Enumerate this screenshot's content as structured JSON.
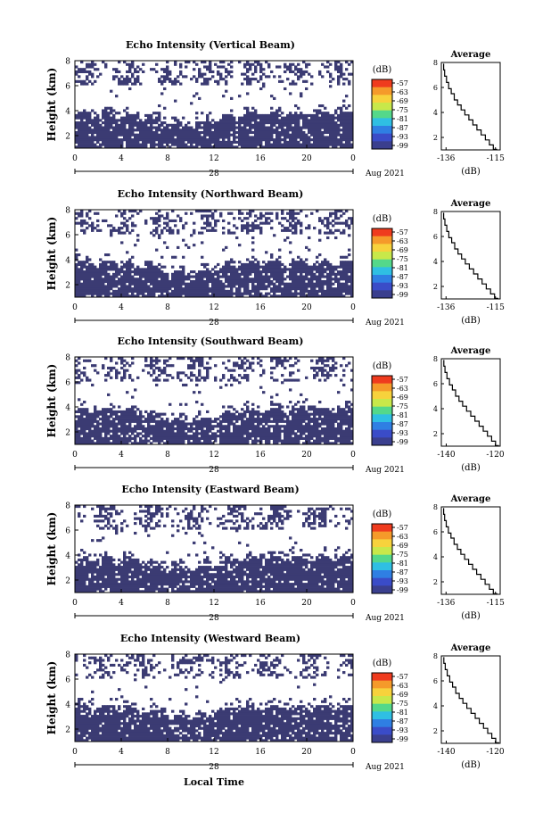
{
  "figure": {
    "xlabel": "Local Time",
    "date_label": "Aug 2021",
    "date_tick": "28",
    "colorbar_unit": "(dB)",
    "colorbar_ticks": [
      "-57",
      "-63",
      "-69",
      "-75",
      "-81",
      "-87",
      "-93",
      "-99"
    ],
    "colorbar_colors": [
      "#ef3b1e",
      "#f59a2a",
      "#f7d23c",
      "#c8e84a",
      "#54d88a",
      "#2fbfe3",
      "#2f7fe3",
      "#3a4cc8",
      "#3a3f8e"
    ],
    "panel_color": "#3b3b73",
    "panel_title": "Average",
    "avg_xlabel": "(dB)"
  },
  "chart_data": [
    {
      "type": "heatmap",
      "title": "Echo Intensity (Vertical Beam)",
      "ylabel": "Height (km)",
      "x_ticks": [
        "0",
        "4",
        "8",
        "12",
        "16",
        "20",
        "0"
      ],
      "xlim": [
        0,
        24
      ],
      "ylim": [
        1,
        8
      ],
      "y_ticks": [
        "8",
        "6",
        "4",
        "2"
      ],
      "avg_panel": {
        "type": "line",
        "title": "Average",
        "xlabel": "(dB)",
        "x_ticks": [
          "-136",
          "-115"
        ],
        "xlim": [
          -138,
          -113
        ],
        "y_ticks": [
          "8",
          "6",
          "4",
          "2"
        ],
        "ylim": [
          1,
          8
        ],
        "x": [
          -137,
          -136.6,
          -135.8,
          -134.9,
          -133.8,
          -132.5,
          -131.1,
          -129.6,
          -128.0,
          -126.3,
          -124.6,
          -122.9,
          -121.1,
          -119.3,
          -117.6,
          -115.9,
          -114.3
        ],
        "y": [
          7.9,
          7.4,
          6.9,
          6.4,
          5.9,
          5.5,
          5.0,
          4.6,
          4.2,
          3.8,
          3.4,
          3.0,
          2.6,
          2.2,
          1.8,
          1.4,
          1.05
        ]
      }
    },
    {
      "type": "heatmap",
      "title": "Echo Intensity (Northward Beam)",
      "ylabel": "Height (km)",
      "x_ticks": [
        "0",
        "4",
        "8",
        "12",
        "16",
        "20",
        "0"
      ],
      "xlim": [
        0,
        24
      ],
      "ylim": [
        1,
        8
      ],
      "y_ticks": [
        "8",
        "6",
        "4",
        "2"
      ],
      "avg_panel": {
        "type": "line",
        "title": "Average",
        "xlabel": "(dB)",
        "x_ticks": [
          "-136",
          "-115"
        ],
        "xlim": [
          -138,
          -113
        ],
        "y_ticks": [
          "8",
          "6",
          "4",
          "2"
        ],
        "ylim": [
          1,
          8
        ],
        "x": [
          -137,
          -136.5,
          -135.7,
          -134.8,
          -133.6,
          -132.3,
          -130.9,
          -129.4,
          -127.8,
          -126.1,
          -124.3,
          -122.5,
          -120.7,
          -118.9,
          -117.1,
          -115.4,
          -113.8
        ],
        "y": [
          7.9,
          7.4,
          6.9,
          6.4,
          5.9,
          5.5,
          5.0,
          4.6,
          4.2,
          3.8,
          3.4,
          3.0,
          2.6,
          2.2,
          1.8,
          1.4,
          1.05
        ]
      }
    },
    {
      "type": "heatmap",
      "title": "Echo Intensity (Southward Beam)",
      "ylabel": "Height (km)",
      "x_ticks": [
        "0",
        "4",
        "8",
        "12",
        "16",
        "20",
        "0"
      ],
      "xlim": [
        0,
        24
      ],
      "ylim": [
        1,
        8
      ],
      "y_ticks": [
        "8",
        "6",
        "4",
        "2"
      ],
      "avg_panel": {
        "type": "line",
        "title": "Average",
        "xlabel": "(dB)",
        "x_ticks": [
          "-140",
          "-120"
        ],
        "xlim": [
          -142,
          -118
        ],
        "y_ticks": [
          "8",
          "6",
          "4",
          "2"
        ],
        "ylim": [
          1,
          8
        ],
        "x": [
          -141,
          -140.5,
          -139.7,
          -138.7,
          -137.5,
          -136.2,
          -134.8,
          -133.3,
          -131.7,
          -130.0,
          -128.3,
          -126.6,
          -124.9,
          -123.2,
          -121.5,
          -119.9,
          -118.5
        ],
        "y": [
          7.9,
          7.4,
          6.9,
          6.4,
          5.9,
          5.5,
          5.0,
          4.6,
          4.2,
          3.8,
          3.4,
          3.0,
          2.6,
          2.2,
          1.8,
          1.4,
          1.05
        ]
      }
    },
    {
      "type": "heatmap",
      "title": "Echo Intensity (Eastward Beam)",
      "ylabel": "Height (km)",
      "x_ticks": [
        "0",
        "4",
        "8",
        "12",
        "16",
        "20",
        "0"
      ],
      "xlim": [
        0,
        24
      ],
      "ylim": [
        1,
        8
      ],
      "y_ticks": [
        "8",
        "6",
        "4",
        "2"
      ],
      "avg_panel": {
        "type": "line",
        "title": "Average",
        "xlabel": "(dB)",
        "x_ticks": [
          "-136",
          "-115"
        ],
        "xlim": [
          -138,
          -113
        ],
        "y_ticks": [
          "8",
          "6",
          "4",
          "2"
        ],
        "ylim": [
          1,
          8
        ],
        "x": [
          -137,
          -136.6,
          -135.9,
          -135.0,
          -133.9,
          -132.6,
          -131.2,
          -129.7,
          -128.1,
          -126.4,
          -124.7,
          -123.0,
          -121.2,
          -119.4,
          -117.6,
          -115.9,
          -114.2
        ],
        "y": [
          7.9,
          7.4,
          6.9,
          6.4,
          5.9,
          5.5,
          5.0,
          4.6,
          4.2,
          3.8,
          3.4,
          3.0,
          2.6,
          2.2,
          1.8,
          1.4,
          1.05
        ]
      }
    },
    {
      "type": "heatmap",
      "title": "Echo Intensity (Westward Beam)",
      "ylabel": "Height (km)",
      "x_ticks": [
        "0",
        "4",
        "8",
        "12",
        "16",
        "20",
        "0"
      ],
      "xlim": [
        0,
        24
      ],
      "ylim": [
        1,
        8
      ],
      "y_ticks": [
        "8",
        "6",
        "4",
        "2"
      ],
      "avg_panel": {
        "type": "line",
        "title": "Average",
        "xlabel": "(dB)",
        "x_ticks": [
          "-140",
          "-120"
        ],
        "xlim": [
          -142,
          -118
        ],
        "y_ticks": [
          "8",
          "6",
          "4",
          "2"
        ],
        "ylim": [
          1,
          8
        ],
        "x": [
          -141,
          -140.4,
          -139.6,
          -138.6,
          -137.4,
          -136.1,
          -134.7,
          -133.2,
          -131.6,
          -129.9,
          -128.2,
          -126.5,
          -124.8,
          -123.1,
          -121.4,
          -119.8,
          -118.4
        ],
        "y": [
          7.9,
          7.4,
          6.9,
          6.4,
          5.9,
          5.5,
          5.0,
          4.6,
          4.2,
          3.8,
          3.4,
          3.0,
          2.6,
          2.2,
          1.8,
          1.4,
          1.05
        ]
      }
    }
  ]
}
